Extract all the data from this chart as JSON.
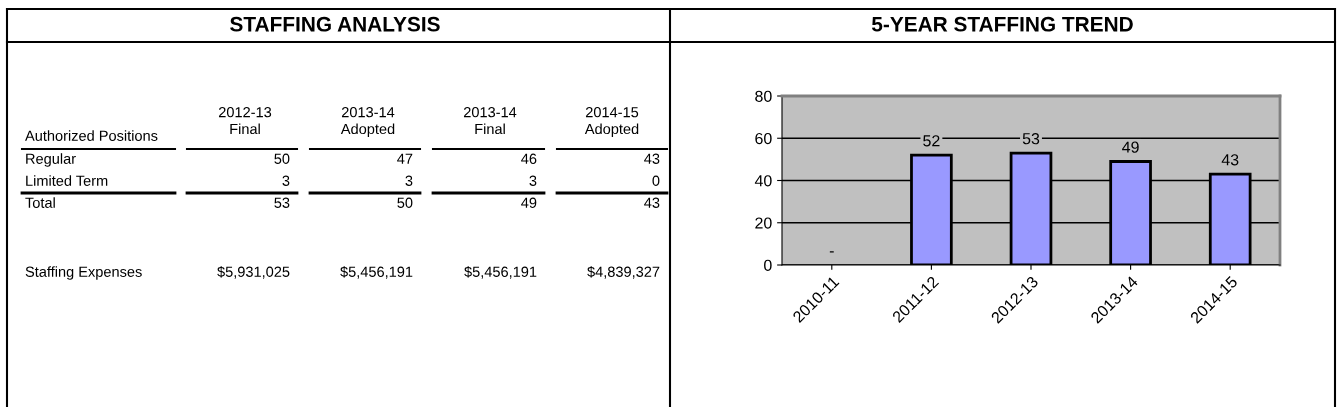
{
  "chart_data": [
    {
      "type": "other",
      "title": "STAFFING ANALYSIS",
      "annotations": [
        "Authorized Positions",
        "2012-13\nFinal",
        "2013-14\nAdopted",
        "2013-14\nFinal",
        "2014-15\nAdopted",
        "Regular",
        "50",
        "47",
        "46",
        "43",
        "Limited Term",
        "3",
        "3",
        "3",
        "0",
        "Total",
        "53",
        "50",
        "49",
        "43",
        "Staffing Expenses",
        "$5,931,025",
        "$5,456,191",
        "$5,456,191",
        "$4,839,327"
      ]
    },
    {
      "type": "bar",
      "title": "5-YEAR STAFFING TREND",
      "categories": [
        "2010-11",
        "2011-12",
        "2012-13",
        "2013-14",
        "2014-15"
      ],
      "values": [
        0,
        52,
        53,
        49,
        43
      ],
      "value_labels": [
        "-",
        "52",
        "53",
        "49",
        "43"
      ],
      "color": "#9999ff",
      "ylim": [
        0,
        80
      ],
      "yticks": [
        0,
        20,
        40,
        60,
        80
      ],
      "grid": "y",
      "legend": false
    }
  ]
}
